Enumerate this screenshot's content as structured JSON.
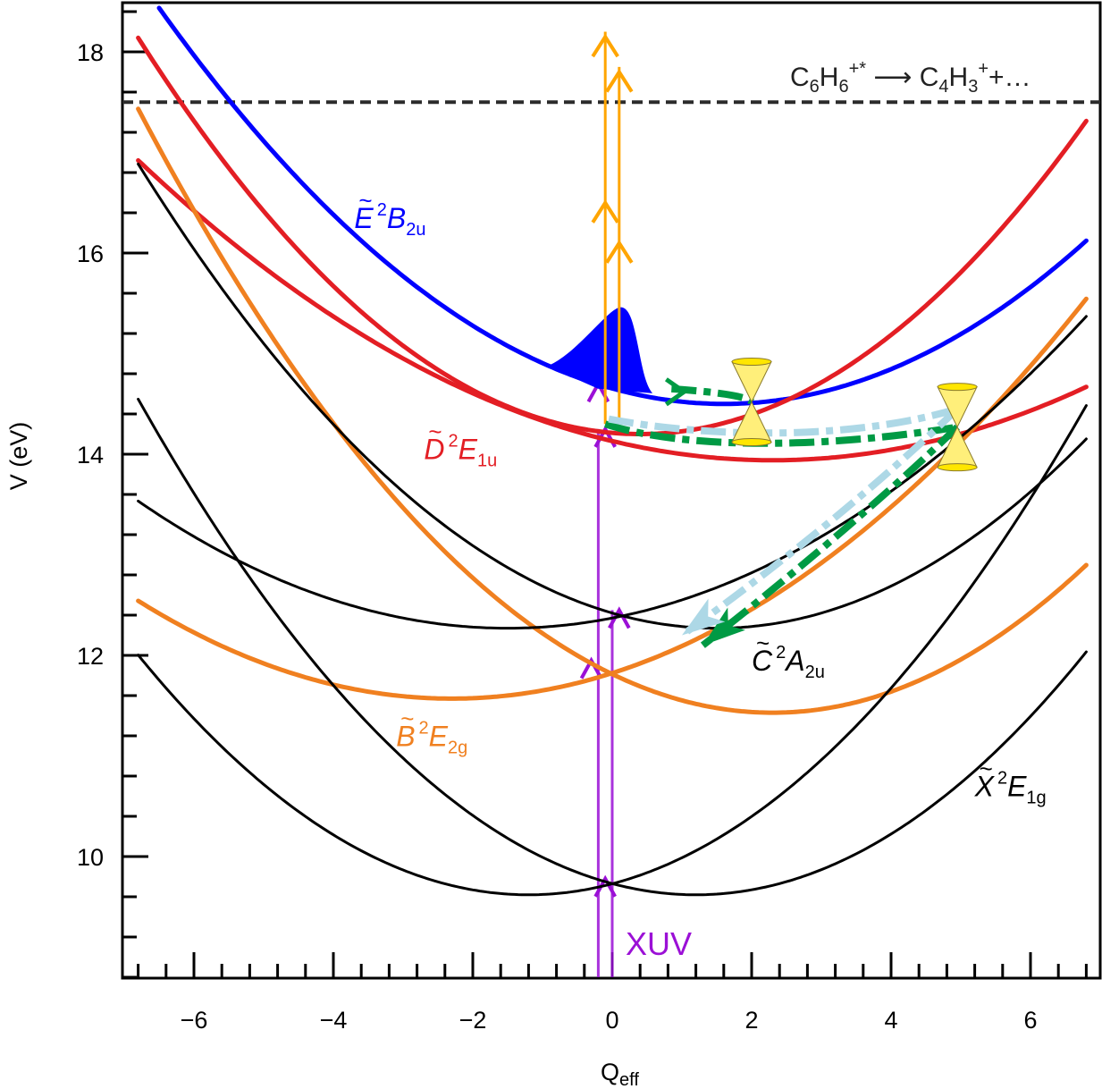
{
  "chart_data": {
    "type": "line",
    "title": "",
    "xlabel": "Q",
    "xlabel_sub": "eff",
    "ylabel": "V (eV)",
    "xlim": [
      -6.9,
      7.0
    ],
    "ylim": [
      8.8,
      18.5
    ],
    "x_ticks": [
      -6,
      -4,
      -2,
      0,
      2,
      4,
      6
    ],
    "x_tick_labels": [
      "−6",
      "−4",
      "−2",
      "0",
      "2",
      "4",
      "6"
    ],
    "x_minor_step": 0.4,
    "y_ticks": [
      10,
      12,
      14,
      16,
      18
    ],
    "y_tick_labels": [
      "10",
      "12",
      "14",
      "16",
      "18"
    ],
    "y_minor_step": 0.4,
    "grid": false,
    "threshold": {
      "value": 17.5,
      "style": "dashed",
      "color": "#2b2b2b",
      "label_left": "C",
      "label_parts": [
        {
          "t": "C",
          "k": "n"
        },
        {
          "t": "6",
          "k": "sub"
        },
        {
          "t": "H",
          "k": "n"
        },
        {
          "t": "6",
          "k": "sub"
        },
        {
          "t": "+*",
          "k": "sup"
        },
        {
          "t": " ⟶ ",
          "k": "n"
        },
        {
          "t": "C",
          "k": "n"
        },
        {
          "t": "4",
          "k": "sub"
        },
        {
          "t": "H",
          "k": "n"
        },
        {
          "t": "3",
          "k": "sub"
        },
        {
          "t": "+",
          "k": "sup"
        },
        {
          "t": "+…",
          "k": "n"
        }
      ]
    },
    "series": [
      {
        "name": "E-tilde 2B2u",
        "color": "#0000ff",
        "form": "parabola",
        "q0": 1.6,
        "v0": 14.5,
        "a": 0.06,
        "range": [
          -6.5,
          6.8
        ],
        "width": 5
      },
      {
        "name": "D-tilde 2E1u upper",
        "color": "#e31e24",
        "form": "parabola",
        "q0": 0.4,
        "v0": 14.2,
        "a": 0.076,
        "range": [
          -6.8,
          6.8
        ],
        "width": 5
      },
      {
        "name": "D-tilde 2E1u lower",
        "color": "#e31e24",
        "form": "parabola",
        "q0": 2.3,
        "v0": 13.94,
        "a": 0.036,
        "range": [
          -6.8,
          6.8
        ],
        "width": 5
      },
      {
        "name": "B-tilde 2E2g branch 1",
        "color": "#f08020",
        "form": "parabola",
        "q0": 2.3,
        "v0": 11.43,
        "a": 0.0725,
        "range": [
          -6.8,
          6.8
        ],
        "width": 5
      },
      {
        "name": "B-tilde 2E2g branch 2",
        "color": "#f08020",
        "form": "parabola",
        "q0": -2.3,
        "v0": 11.57,
        "a": 0.048,
        "range": [
          -6.8,
          6.8
        ],
        "width": 5
      },
      {
        "name": "C-tilde 2A2u branch 1",
        "color": "#000000",
        "form": "parabola",
        "q0": 1.5,
        "v0": 12.27,
        "a": 0.067,
        "range": [
          -6.8,
          6.8
        ],
        "width": 3
      },
      {
        "name": "C-tilde 2A2u branch 2",
        "color": "#000000",
        "form": "parabola",
        "q0": -1.5,
        "v0": 12.27,
        "a": 0.045,
        "range": [
          -6.8,
          6.8
        ],
        "width": 3
      },
      {
        "name": "X-tilde 2E1g branch 1",
        "color": "#000000",
        "form": "parabola",
        "q0": 1.2,
        "v0": 9.62,
        "a": 0.077,
        "range": [
          -6.8,
          6.8
        ],
        "width": 3
      },
      {
        "name": "X-tilde 2E1g branch 2",
        "color": "#000000",
        "form": "parabola",
        "q0": -1.2,
        "v0": 9.62,
        "a": 0.076,
        "range": [
          -6.8,
          6.8
        ],
        "width": 3
      }
    ],
    "state_labels": [
      {
        "name": "E-tilde",
        "letter": "E",
        "sup": "2",
        "sym": "B",
        "sub": "2u",
        "color": "#0000ff",
        "q": -3.7,
        "v": 16.25
      },
      {
        "name": "D-tilde",
        "letter": "D",
        "sup": "2",
        "sym": "E",
        "sub": "1u",
        "color": "#e31e24",
        "q": -2.7,
        "v": 13.95
      },
      {
        "name": "C-tilde",
        "letter": "C",
        "sup": "2",
        "sym": "A",
        "sub": "2u",
        "color": "#000000",
        "q": 2.0,
        "v": 11.85
      },
      {
        "name": "B-tilde",
        "letter": "B",
        "sup": "2",
        "sym": "E",
        "sub": "2g",
        "color": "#f08020",
        "q": -3.1,
        "v": 11.1
      },
      {
        "name": "X-tilde",
        "letter": "X",
        "sup": "2",
        "sym": "E",
        "sub": "1g",
        "color": "#000000",
        "q": 5.2,
        "v": 10.6
      }
    ],
    "wavepacket": {
      "color": "#0000ff",
      "peak_q": 0.1,
      "peak_v": 15.45,
      "base_left_q": -0.9,
      "base_right_q": 0.55
    },
    "xuv_arrows": {
      "label": "XUV",
      "color": "#9b10d6",
      "lines_q": [
        -0.3,
        -0.2,
        -0.1,
        0.0,
        0.1
      ],
      "heads": [
        {
          "q": -0.1,
          "v": 9.78
        },
        {
          "q": -0.3,
          "v": 11.95
        },
        {
          "q": 0.1,
          "v": 12.45
        },
        {
          "q": -0.1,
          "v": 14.25
        },
        {
          "q": -0.2,
          "v": 14.7
        }
      ]
    },
    "probe_arrows": {
      "color": "#ffa500",
      "lines": [
        {
          "q": -0.1,
          "from_v": 14.3,
          "to_v": 18.2,
          "heads_v": [
            18.15,
            16.5
          ]
        },
        {
          "q": 0.1,
          "from_v": 14.3,
          "to_v": 17.85,
          "heads_v": [
            17.8,
            16.1
          ]
        }
      ]
    },
    "conical_intersections": [
      {
        "q": 2.0,
        "v": 14.52,
        "color": "#ffef7a"
      },
      {
        "q": 4.95,
        "v": 14.27,
        "color": "#ffef7a"
      }
    ],
    "pathways": [
      {
        "name": "green E-to-D",
        "color": "#009a44",
        "points": [
          [
            0.85,
            14.65
          ],
          [
            1.9,
            14.6
          ],
          [
            2.0,
            14.52
          ]
        ],
        "arrow_at_q": 1.8
      },
      {
        "name": "green D-to-CI2",
        "color": "#009a44",
        "points": [
          [
            -0.1,
            14.3
          ],
          [
            1.0,
            14.05
          ],
          [
            3.0,
            14.05
          ],
          [
            4.95,
            14.27
          ]
        ]
      },
      {
        "name": "light-blue D-to-CI2",
        "color": "#add8e6",
        "points": [
          [
            -0.05,
            14.35
          ],
          [
            1.5,
            14.15
          ],
          [
            3.5,
            14.15
          ],
          [
            4.95,
            14.45
          ]
        ]
      },
      {
        "name": "green CI2-to-B",
        "color": "#009a44",
        "points": [
          [
            4.95,
            14.27
          ],
          [
            3.5,
            13.3
          ],
          [
            1.3,
            12.1
          ]
        ],
        "head": true
      },
      {
        "name": "light-blue CI2-to-B",
        "color": "#add8e6",
        "points": [
          [
            4.95,
            14.45
          ],
          [
            3.3,
            13.35
          ],
          [
            1.0,
            12.2
          ]
        ],
        "head": true
      }
    ]
  }
}
